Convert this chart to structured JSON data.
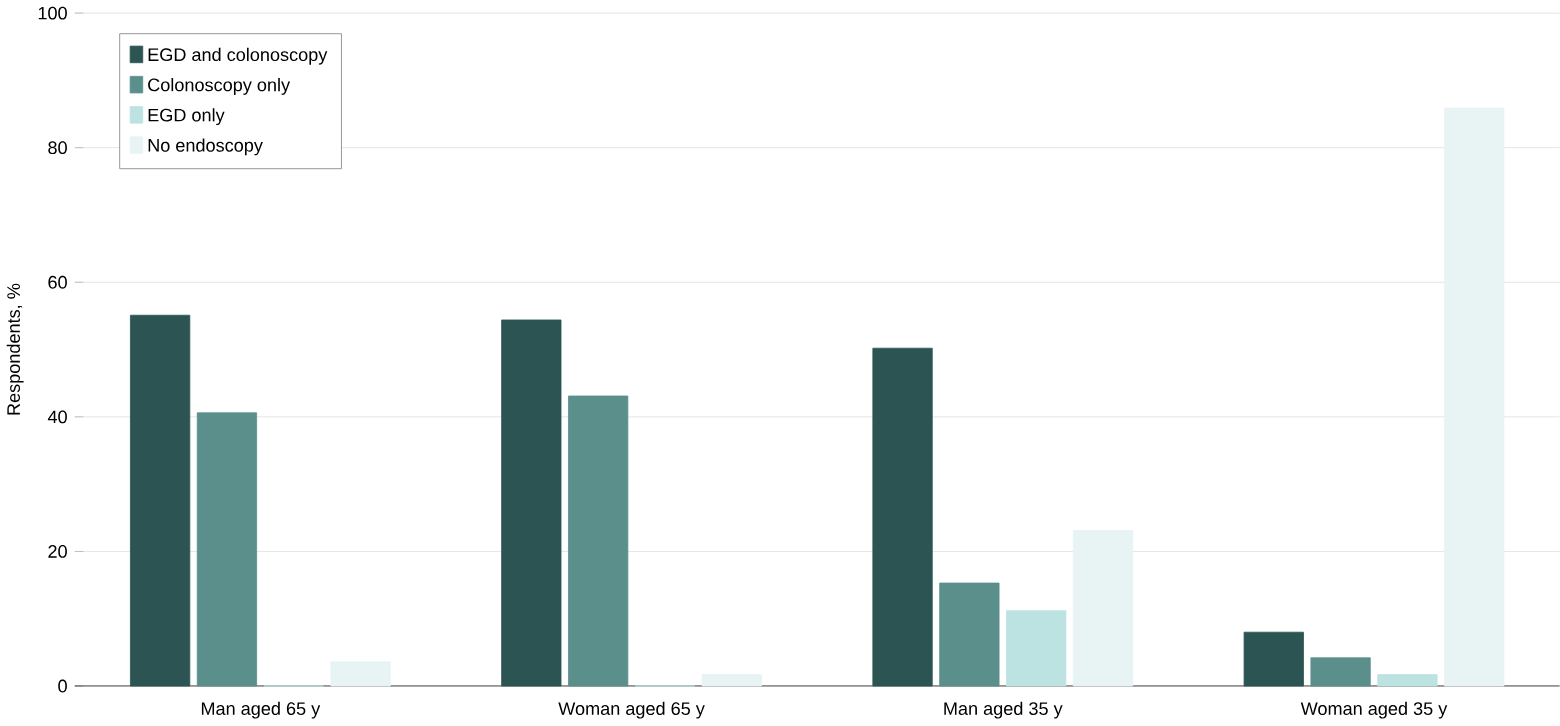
{
  "chart_data": {
    "type": "bar",
    "ylabel": "Respondents, %",
    "categories": [
      "Man aged 65 y",
      "Woman aged 65 y",
      "Man aged 35 y",
      "Woman aged 35 y"
    ],
    "series": [
      {
        "name": "EGD and colonoscopy",
        "color": "#2b5453",
        "values": [
          55.1,
          54.4,
          50.2,
          8.0
        ]
      },
      {
        "name": "Colonoscopy only",
        "color": "#5a8f8c",
        "values": [
          40.6,
          43.1,
          15.3,
          4.2
        ]
      },
      {
        "name": "EGD only",
        "color": "#bde2e2",
        "values": [
          0,
          0,
          11.2,
          1.7
        ]
      },
      {
        "name": "No endoscopy",
        "color": "#e8f3f4",
        "values": [
          3.6,
          1.7,
          23.1,
          85.9
        ]
      }
    ],
    "ylim": [
      0,
      100
    ],
    "yticks": [
      0,
      20,
      40,
      60,
      80,
      100
    ],
    "grid": "y",
    "legend": "top left"
  }
}
